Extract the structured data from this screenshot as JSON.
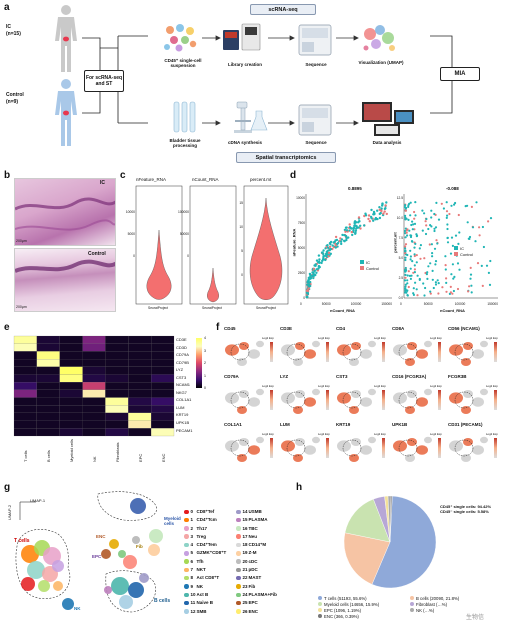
{
  "panels": {
    "a": "a",
    "b": "b",
    "c": "c",
    "d": "d",
    "e": "e",
    "f": "f",
    "g": "g",
    "h": "h"
  },
  "panel_a": {
    "ic_label": "IC",
    "ic_n": "(n=15)",
    "control_label": "Control",
    "control_n": "(n=9)",
    "left_box": "For scRNA-seq and ST",
    "right_box": "MIA",
    "top_banner": "scRNA-seq",
    "bottom_banner": "Spatial transcriptomics",
    "top_steps": [
      "CD45⁺ single-cell suspension",
      "Library creation",
      "Sequence",
      "Visualization (UMAP)"
    ],
    "bottom_steps": [
      "Bladder tissue processing",
      "cDNA synthesis",
      "Sequence",
      "Data analysis"
    ]
  },
  "panel_b": {
    "top_label": "IC",
    "bottom_label": "Control",
    "scale_top": "200μm",
    "scale_bottom": "200μm"
  },
  "panel_c": {
    "titles": [
      "nFeature_RNA",
      "nCount_RNA",
      "percent.mt"
    ],
    "xlabel": "SeuratProject",
    "y_ticks_1": [
      "10000",
      "5000",
      "0"
    ],
    "y_ticks_2": [
      "100000",
      "50000",
      "0"
    ],
    "y_ticks_3": [
      "15",
      "10",
      "5",
      "0"
    ]
  },
  "panel_d": {
    "left_corr": "0.8895",
    "right_corr": "-0.088",
    "left_xlabel": "nCount_RNA",
    "left_ylabel": "nFeature_RNA",
    "right_xlabel": "nCount_RNA",
    "right_ylabel": "percent.mt",
    "legend": [
      "IC",
      "Control"
    ],
    "x_ticks": [
      "0",
      "50000",
      "100000",
      "150000"
    ],
    "x_ticks_right": [
      "0",
      "50000",
      "100000",
      "150000"
    ],
    "y_ticks_left": [
      "0",
      "2500",
      "5000",
      "7500",
      "10000"
    ],
    "y_ticks_right": [
      "0.0",
      "2.5",
      "5.0",
      "7.5",
      "10.0",
      "12.5"
    ]
  },
  "panel_e": {
    "genes": [
      "CD3E",
      "CD3D",
      "CD79A",
      "CD79B",
      "LYZ",
      "CST3",
      "NCAM1",
      "NKG7",
      "COL1A1",
      "LUM",
      "KRT19",
      "UPK1B",
      "PECAM1"
    ],
    "cell_types": [
      "T cells",
      "B cells",
      "Myeloid cells",
      "NK",
      "Fibroblasts",
      "EPC",
      "ENC"
    ],
    "colorbar_ticks": [
      "4",
      "3",
      "2",
      "1",
      "0"
    ]
  },
  "panel_f": {
    "row1": [
      "CD45",
      "CD3E",
      "CD4",
      "CD8A",
      "CD56 (NCAM1)"
    ],
    "row2": [
      "CD79A",
      "LYZ",
      "CST3",
      "CD16 (FCGR3A)",
      "FCGR3B"
    ],
    "row3": [
      "COL1A1",
      "LUM",
      "KRT19",
      "UPK1B",
      "CD31 (PECAM1)"
    ],
    "legend_title": "Log2 Exp"
  },
  "panel_g": {
    "axis_x": "UMAP-1",
    "axis_y": "UMAP-2",
    "group_labels": [
      "T cells",
      "Myeloid cells",
      "B cells",
      "NK",
      "ENC",
      "Fib",
      "EPC"
    ],
    "legend_col1": [
      "CD8⁺Tef",
      "CD4⁺Tcm",
      "Th17",
      "Treg",
      "CD4⁺Tem",
      "GZMK⁺CD8⁺T",
      "Tfh",
      "NKT",
      "Act CD8⁺T",
      "NK",
      "Act B",
      "Naive B",
      "SMB"
    ],
    "legend_col2": [
      "USMB",
      "PLASMA",
      "TBC",
      "Neu",
      "CD14⁺M",
      "Z-M",
      "cDC",
      "pDC",
      "MAST",
      "Fib",
      "PLASMA+Fib",
      "EPC",
      "ENC"
    ],
    "colors_col1": [
      "#e41a1c",
      "#ff7f00",
      "#e7a0c8",
      "#f4a6a6",
      "#8dd3c7",
      "#c6a0e0",
      "#a6d854",
      "#fdb462",
      "#b3de69",
      "#1f78b4",
      "#4db6ac",
      "#2166ac",
      "#a6cee3"
    ],
    "colors_col2": [
      "#9e9ac8",
      "#bc80bd",
      "#c7e9c0",
      "#fb8072",
      "#d9d9d9",
      "#fdd0a2",
      "#bdbdbd",
      "#969696",
      "#756bb1",
      "#e6ab02",
      "#7fc97f",
      "#b15928",
      "#ffed6f"
    ]
  },
  "panel_h": {
    "note_line1": "CD45⁺ single cells: 94.42%",
    "note_line2": "CD45⁻ single cells: 5.58%",
    "legend": [
      "T cells (51193, 55.6%)",
      "B cells (20090, 21.8%)",
      "Myeloid cells (14656, 15.9%)",
      "Fibroblast (…%)",
      "EPC (1096, 1.19%)",
      "NK (…%)",
      "ENC (366, 0.39%)"
    ],
    "legend_colors": [
      "#8fa9d9",
      "#f6c4a4",
      "#c9e3b0",
      "#b7a7d6",
      "#f3e19a",
      "#aaaaaa",
      "#777777"
    ],
    "watermark": "生物信"
  },
  "chart_data": [
    {
      "type": "pie",
      "labels": [
        "T cells",
        "B cells",
        "Myeloid cells",
        "Fibroblast",
        "EPC",
        "NK",
        "ENC"
      ],
      "values": [
        55.6,
        21.8,
        15.9,
        4.0,
        1.19,
        1.1,
        0.39
      ],
      "title": "",
      "legend_placement": "bottom"
    },
    {
      "type": "heatmap",
      "rows": [
        "CD3E",
        "CD3D",
        "CD79A",
        "CD79B",
        "LYZ",
        "CST3",
        "NCAM1",
        "NKG7",
        "COL1A1",
        "LUM",
        "KRT19",
        "UPK1B",
        "PECAM1"
      ],
      "columns": [
        "T cells",
        "B cells",
        "Myeloid cells",
        "NK",
        "Fibroblasts",
        "EPC",
        "ENC"
      ],
      "values": [
        [
          3.6,
          0.3,
          0.2,
          1.2,
          0.2,
          0.2,
          0.2
        ],
        [
          3.4,
          0.3,
          0.2,
          1.1,
          0.2,
          0.2,
          0.2
        ],
        [
          0.2,
          3.8,
          0.2,
          0.2,
          0.2,
          0.2,
          0.2
        ],
        [
          0.2,
          3.5,
          0.2,
          0.2,
          0.2,
          0.2,
          0.2
        ],
        [
          0.2,
          0.2,
          4.0,
          0.3,
          0.2,
          0.2,
          0.2
        ],
        [
          0.3,
          0.3,
          3.8,
          0.4,
          0.3,
          0.2,
          0.5
        ],
        [
          0.6,
          0.2,
          0.2,
          1.8,
          0.2,
          0.2,
          0.2
        ],
        [
          1.2,
          0.2,
          0.3,
          3.2,
          0.2,
          0.2,
          0.2
        ],
        [
          0.2,
          0.2,
          0.2,
          0.2,
          3.6,
          0.4,
          0.6
        ],
        [
          0.2,
          0.2,
          0.2,
          0.2,
          3.4,
          0.3,
          0.4
        ],
        [
          0.2,
          0.2,
          0.2,
          0.2,
          0.3,
          3.6,
          0.3
        ],
        [
          0.2,
          0.2,
          0.2,
          0.2,
          0.2,
          3.2,
          0.2
        ],
        [
          0.2,
          0.2,
          0.3,
          0.2,
          0.4,
          0.2,
          3.4
        ]
      ],
      "colorbar_range": [
        0,
        4
      ]
    }
  ]
}
